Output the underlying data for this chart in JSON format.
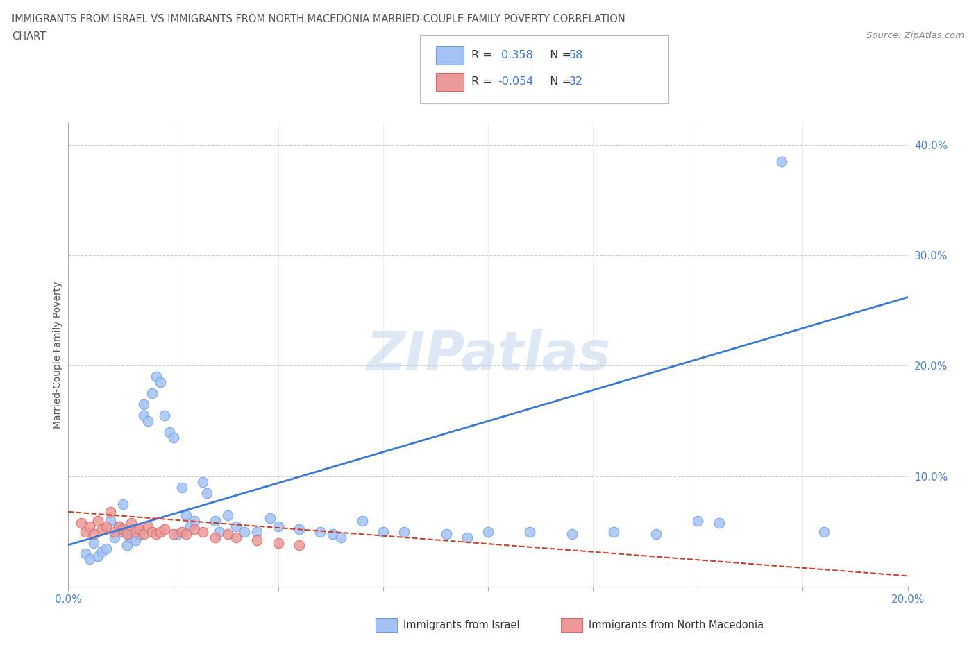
{
  "title_line1": "IMMIGRANTS FROM ISRAEL VS IMMIGRANTS FROM NORTH MACEDONIA MARRIED-COUPLE FAMILY POVERTY CORRELATION",
  "title_line2": "CHART",
  "source_text": "Source: ZipAtlas.com",
  "ylabel": "Married-Couple Family Poverty",
  "xlim": [
    0.0,
    0.2
  ],
  "ylim": [
    0.0,
    0.42
  ],
  "watermark": "ZIPatlas",
  "israel_color": "#a4c2f4",
  "israel_edge_color": "#6d9eeb",
  "macedonia_color": "#ea9999",
  "macedonia_edge_color": "#e06666",
  "israel_R": "0.358",
  "israel_N": "58",
  "macedonia_R": "-0.054",
  "macedonia_N": "32",
  "israel_line_color": "#3c78d8",
  "macedonia_line_color": "#cc4125",
  "grid_color": "#cccccc",
  "background_color": "#ffffff",
  "israel_x": [
    0.004,
    0.005,
    0.006,
    0.007,
    0.008,
    0.009,
    0.01,
    0.011,
    0.012,
    0.013,
    0.013,
    0.014,
    0.015,
    0.015,
    0.016,
    0.017,
    0.018,
    0.018,
    0.019,
    0.02,
    0.021,
    0.022,
    0.023,
    0.024,
    0.025,
    0.026,
    0.027,
    0.028,
    0.029,
    0.03,
    0.032,
    0.033,
    0.035,
    0.036,
    0.038,
    0.04,
    0.042,
    0.045,
    0.048,
    0.05,
    0.055,
    0.06,
    0.063,
    0.065,
    0.07,
    0.075,
    0.08,
    0.09,
    0.095,
    0.1,
    0.11,
    0.12,
    0.13,
    0.14,
    0.15,
    0.155,
    0.17,
    0.18
  ],
  "israel_y": [
    0.03,
    0.025,
    0.04,
    0.028,
    0.032,
    0.035,
    0.06,
    0.045,
    0.055,
    0.05,
    0.075,
    0.038,
    0.045,
    0.052,
    0.042,
    0.048,
    0.165,
    0.155,
    0.15,
    0.175,
    0.19,
    0.185,
    0.155,
    0.14,
    0.135,
    0.048,
    0.09,
    0.065,
    0.055,
    0.06,
    0.095,
    0.085,
    0.06,
    0.05,
    0.065,
    0.055,
    0.05,
    0.05,
    0.062,
    0.055,
    0.052,
    0.05,
    0.048,
    0.045,
    0.06,
    0.05,
    0.05,
    0.048,
    0.045,
    0.05,
    0.05,
    0.048,
    0.05,
    0.048,
    0.06,
    0.058,
    0.385,
    0.05
  ],
  "macedonia_x": [
    0.003,
    0.004,
    0.005,
    0.006,
    0.007,
    0.008,
    0.009,
    0.01,
    0.011,
    0.012,
    0.013,
    0.014,
    0.015,
    0.016,
    0.017,
    0.018,
    0.019,
    0.02,
    0.021,
    0.022,
    0.023,
    0.025,
    0.027,
    0.028,
    0.03,
    0.032,
    0.035,
    0.038,
    0.04,
    0.045,
    0.05,
    0.055
  ],
  "macedonia_y": [
    0.058,
    0.05,
    0.055,
    0.048,
    0.06,
    0.052,
    0.055,
    0.068,
    0.05,
    0.055,
    0.052,
    0.048,
    0.058,
    0.05,
    0.052,
    0.048,
    0.055,
    0.05,
    0.048,
    0.05,
    0.052,
    0.048,
    0.05,
    0.048,
    0.052,
    0.05,
    0.045,
    0.048,
    0.045,
    0.042,
    0.04,
    0.038
  ]
}
